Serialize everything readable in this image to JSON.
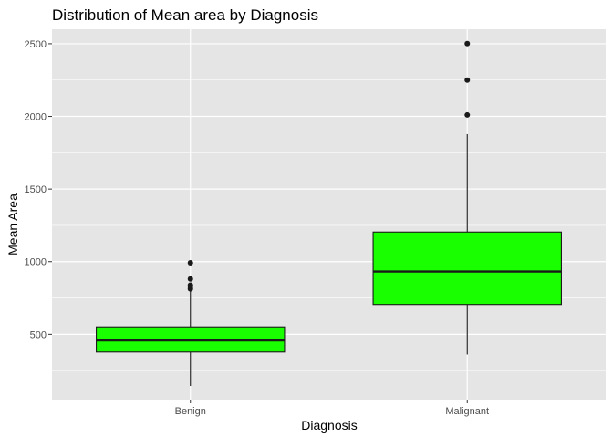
{
  "chart_data": {
    "type": "box",
    "title": "Distribution of Mean area by Diagnosis",
    "xlabel": "Diagnosis",
    "ylabel": "Mean Area",
    "ylim": [
      50,
      2600
    ],
    "yticks": [
      500,
      1000,
      1500,
      2000,
      2500
    ],
    "grid": true,
    "legend": "none",
    "colors": {
      "panel": "#e5e5e5",
      "grid_major": "#ffffff",
      "box_fill": "#1aff00",
      "box_stroke": "#1a1a1a",
      "point": "#1a1a1a",
      "tick_text": "#4d4d4d"
    },
    "categories": [
      "Benign",
      "Malignant"
    ],
    "boxes": [
      {
        "category": "Benign",
        "whisker_low": 144,
        "q1": 378,
        "median": 458,
        "q3": 551,
        "whisker_high": 800,
        "outliers": [
          812,
          824,
          838,
          881,
          992
        ]
      },
      {
        "category": "Malignant",
        "whisker_low": 361,
        "q1": 705,
        "median": 932,
        "q3": 1204,
        "whisker_high": 1878,
        "outliers": [
          2010,
          2250,
          2501
        ]
      }
    ]
  }
}
